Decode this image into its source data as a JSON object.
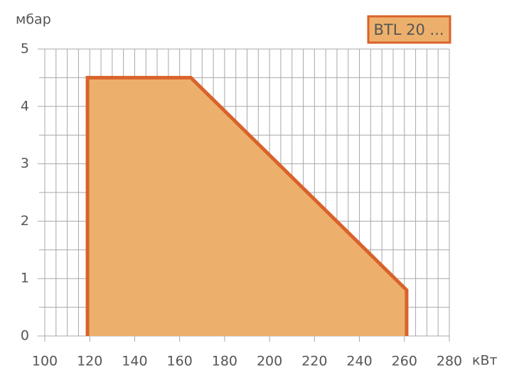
{
  "chart_data": {
    "type": "area",
    "x": [
      119,
      119,
      165,
      261,
      261
    ],
    "values": [
      0,
      4.5,
      4.5,
      0.8,
      0
    ],
    "series_name": "BTL 20 ...",
    "x_label": "кВт",
    "y_label": "мбар",
    "color": "#edb06c",
    "line_color": "#d9622b",
    "xlim": [
      100,
      280
    ],
    "xticks": [
      100,
      120,
      140,
      160,
      180,
      200,
      220,
      240,
      260,
      280
    ],
    "ylim": [
      0,
      5
    ],
    "yticks": [
      0,
      1,
      2,
      3,
      4,
      5
    ],
    "grid": true,
    "grid_subdivisions": {
      "x": 4,
      "y": 2
    },
    "legend": "top-right"
  }
}
